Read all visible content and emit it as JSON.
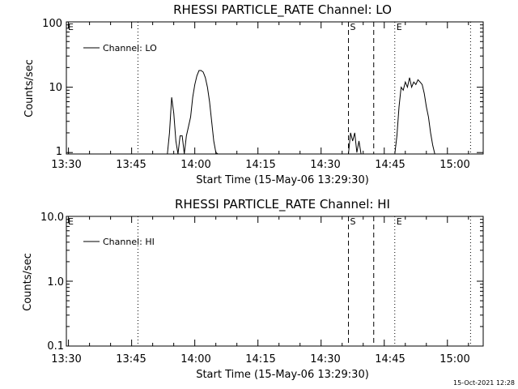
{
  "footer": {
    "timestamp": "15-Oct-2021 12:28"
  },
  "chart_data": [
    {
      "type": "line",
      "title": "RHESSI PARTICLE_RATE Channel: LO",
      "xlabel": "Start Time (15-May-06 13:29:30)",
      "ylabel": "Counts/sec",
      "yscale": "log",
      "xlim": [
        "13:29:30",
        "15:08:30"
      ],
      "ylim": [
        0.95,
        100
      ],
      "x_ticks": [
        "13:30",
        "13:45",
        "14:00",
        "14:15",
        "14:30",
        "14:45",
        "15:00"
      ],
      "y_ticks": [
        "1",
        "10",
        "100"
      ],
      "legend": {
        "position": "top-left",
        "entries": [
          "Channel: LO"
        ]
      },
      "markers": [
        {
          "time": "13:29:30",
          "style": "dotted",
          "label": "E"
        },
        {
          "time": "13:46:30",
          "style": "dotted",
          "label": ""
        },
        {
          "time": "14:36:30",
          "style": "dashed",
          "label": "S"
        },
        {
          "time": "14:42:30",
          "style": "dashed",
          "label": ""
        },
        {
          "time": "14:47:30",
          "style": "dotted",
          "label": "E"
        },
        {
          "time": "15:05:30",
          "style": "dotted",
          "label": ""
        }
      ],
      "series": [
        {
          "name": "Channel: LO",
          "segments": [
            {
              "x": [
                "13:53:30",
                "13:54:00",
                "13:54:30",
                "13:55:00",
                "13:55:30",
                "13:56:00",
                "13:56:30",
                "13:57:00",
                "13:57:30",
                "13:58:00",
                "13:58:30",
                "13:59:00",
                "13:59:30",
                "14:00:00",
                "14:00:30",
                "14:01:00",
                "14:01:30",
                "14:02:00",
                "14:02:30",
                "14:03:00",
                "14:03:30",
                "14:04:00",
                "14:04:30",
                "14:05:00",
                "14:05:30"
              ],
              "y": [
                0.9,
                2,
                7,
                4,
                1.5,
                0.9,
                1.8,
                1.8,
                0.9,
                1.8,
                2.5,
                3.5,
                7,
                11,
                15,
                18,
                18,
                17,
                14,
                10,
                6,
                3,
                1.5,
                1,
                0.9
              ]
            },
            {
              "x": [
                "14:36:30",
                "14:37:00",
                "14:37:30",
                "14:38:00",
                "14:38:30",
                "14:39:00",
                "14:39:30"
              ],
              "y": [
                0.9,
                2,
                1.5,
                2,
                1,
                1.5,
                0.9
              ]
            },
            {
              "x": [
                "14:47:30",
                "14:48:00",
                "14:48:30",
                "14:49:00",
                "14:49:30",
                "14:50:00",
                "14:50:30",
                "14:51:00",
                "14:51:30",
                "14:52:00",
                "14:52:30",
                "14:53:00",
                "14:53:30",
                "14:54:00",
                "14:54:30",
                "14:55:00",
                "14:55:30",
                "14:56:00",
                "14:56:30",
                "14:57:00"
              ],
              "y": [
                0.9,
                1.8,
                5,
                10,
                9,
                12,
                10,
                14,
                10,
                12,
                11,
                13,
                12,
                11,
                8,
                5,
                3.5,
                2,
                1.3,
                0.9
              ]
            }
          ]
        }
      ]
    },
    {
      "type": "line",
      "title": "RHESSI PARTICLE_RATE Channel: HI",
      "xlabel": "Start Time (15-May-06 13:29:30)",
      "ylabel": "Counts/sec",
      "yscale": "log",
      "xlim": [
        "13:29:30",
        "15:08:30"
      ],
      "ylim": [
        0.1,
        10
      ],
      "x_ticks": [
        "13:30",
        "13:45",
        "14:00",
        "14:15",
        "14:30",
        "14:45",
        "15:00"
      ],
      "y_ticks": [
        "0.1",
        "1.0",
        "10.0"
      ],
      "legend": {
        "position": "top-left",
        "entries": [
          "Channel: HI"
        ]
      },
      "markers": [
        {
          "time": "13:29:30",
          "style": "dotted",
          "label": "E"
        },
        {
          "time": "13:46:30",
          "style": "dotted",
          "label": ""
        },
        {
          "time": "14:36:30",
          "style": "dashed",
          "label": "S"
        },
        {
          "time": "14:42:30",
          "style": "dashed",
          "label": ""
        },
        {
          "time": "14:47:30",
          "style": "dotted",
          "label": "E"
        },
        {
          "time": "15:05:30",
          "style": "dotted",
          "label": ""
        }
      ],
      "series": [
        {
          "name": "Channel: HI",
          "x": [],
          "y": []
        }
      ]
    }
  ]
}
